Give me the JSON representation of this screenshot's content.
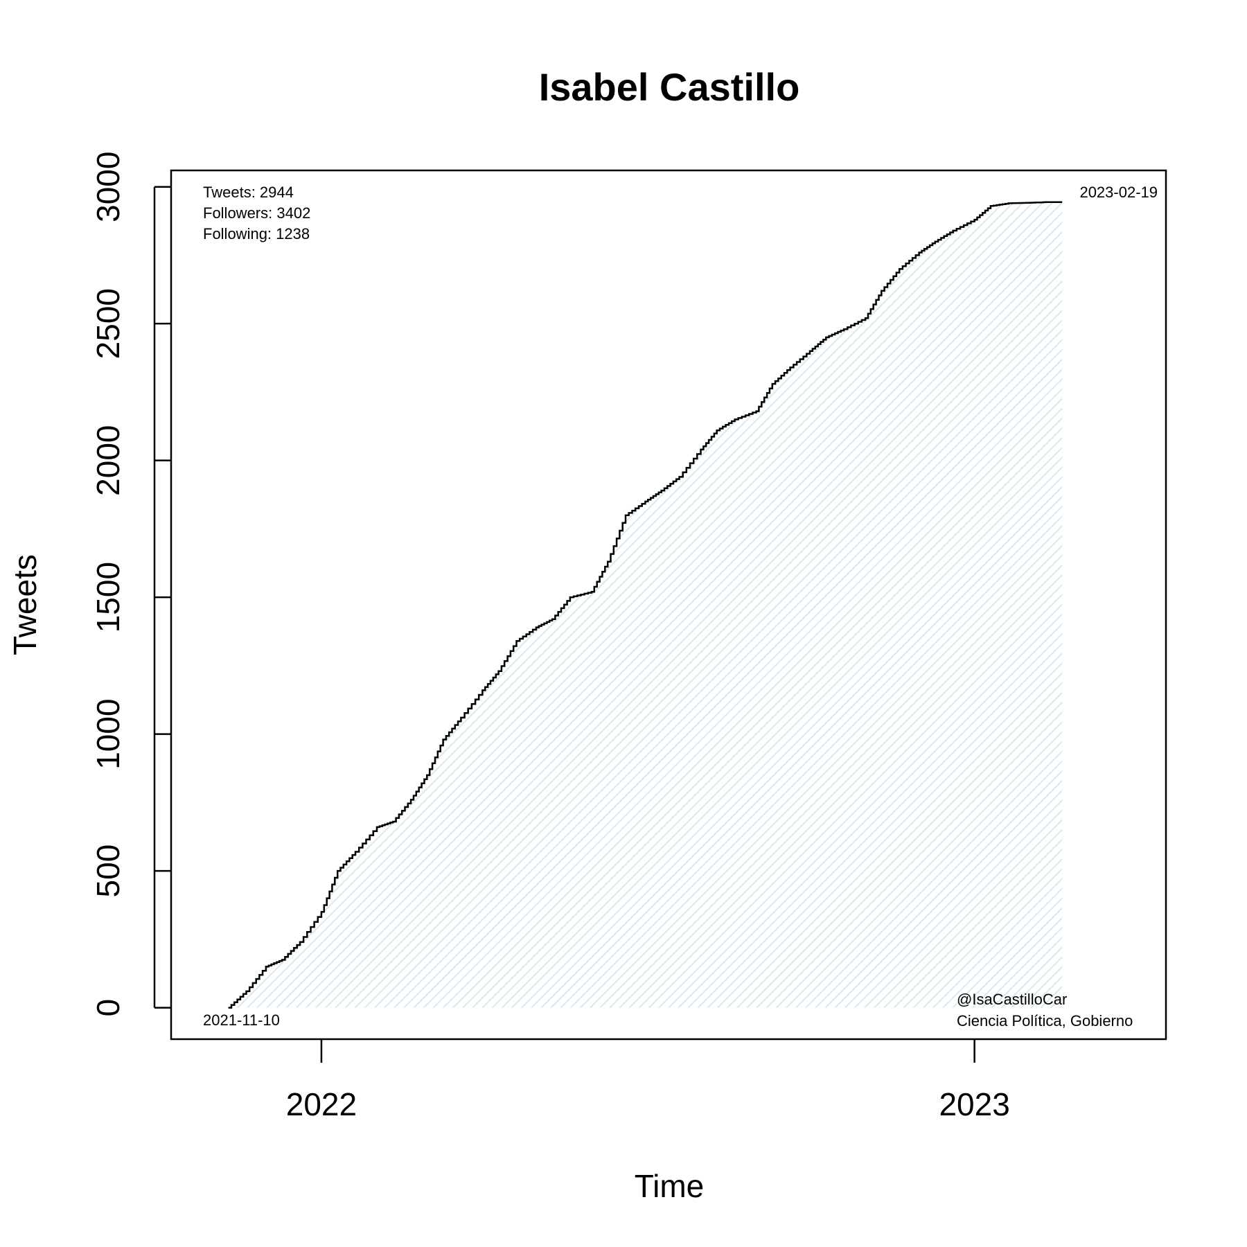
{
  "chart_data": {
    "type": "area",
    "title": "Isabel Castillo",
    "xlabel": "Time",
    "ylabel": "Tweets",
    "xlim": [
      "2021-10-09",
      "2023-04-18"
    ],
    "ylim": [
      -115,
      3060
    ],
    "x_ticks": [
      {
        "date": "2022-01-01",
        "label": "2022"
      },
      {
        "date": "2023-01-01",
        "label": "2023"
      }
    ],
    "y_ticks": [
      0,
      500,
      1000,
      1500,
      2000,
      2500,
      3000
    ],
    "series": [
      {
        "x": [
          "2021-11-10",
          "2021-11-20",
          "2021-12-01",
          "2021-12-10",
          "2021-12-20",
          "2022-01-01",
          "2022-01-10",
          "2022-01-20",
          "2022-02-01",
          "2022-02-10",
          "2022-02-20",
          "2022-03-01",
          "2022-03-10",
          "2022-03-20",
          "2022-04-01",
          "2022-04-10",
          "2022-04-20",
          "2022-05-01",
          "2022-05-10",
          "2022-05-20",
          "2022-06-01",
          "2022-06-10",
          "2022-06-20",
          "2022-07-01",
          "2022-07-10",
          "2022-07-20",
          "2022-08-01",
          "2022-08-10",
          "2022-08-20",
          "2022-09-01",
          "2022-09-10",
          "2022-09-20",
          "2022-10-01",
          "2022-10-10",
          "2022-10-20",
          "2022-11-01",
          "2022-11-10",
          "2022-11-20",
          "2022-12-01",
          "2022-12-10",
          "2022-12-20",
          "2023-01-01",
          "2023-01-10",
          "2023-01-20",
          "2023-02-01",
          "2023-02-10",
          "2023-02-19"
        ],
        "y": [
          0,
          60,
          150,
          175,
          240,
          350,
          500,
          570,
          660,
          680,
          760,
          850,
          980,
          1060,
          1160,
          1230,
          1340,
          1390,
          1420,
          1500,
          1520,
          1630,
          1800,
          1850,
          1890,
          1940,
          2040,
          2110,
          2150,
          2180,
          2280,
          2340,
          2400,
          2450,
          2480,
          2520,
          2620,
          2700,
          2760,
          2800,
          2840,
          2880,
          2930,
          2940,
          2942,
          2944,
          2944
        ]
      }
    ],
    "fill_color": "#e8f3f7",
    "line_color": "#000000",
    "start_label": "2021-11-10",
    "end_label": "2023-02-19",
    "stats": [
      "Tweets: 2944",
      "Followers: 3402",
      "Following: 1238"
    ],
    "handle": "@IsaCastilloCar",
    "bio": "Ciencia Política, Gobierno"
  }
}
